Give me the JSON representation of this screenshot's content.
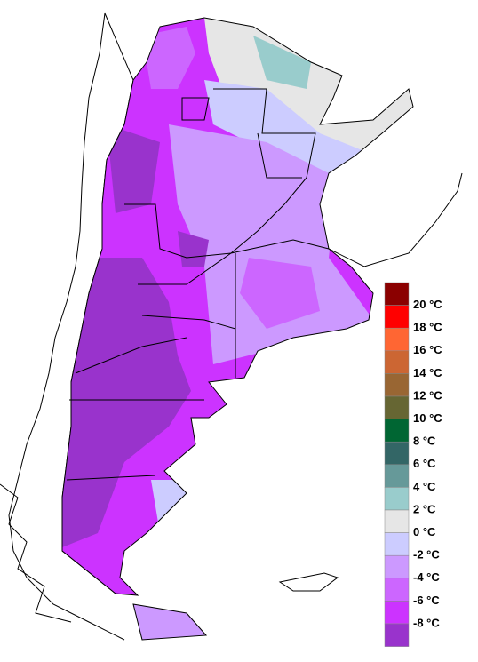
{
  "legend": {
    "swatch_colors": [
      "#8b0000",
      "#ff0000",
      "#ff6633",
      "#cc6633",
      "#996633",
      "#666633",
      "#006633",
      "#336666",
      "#669999",
      "#99cccc",
      "#e6e6e6",
      "#ccccff",
      "#cc99ff",
      "#cc66ff",
      "#cc33ff",
      "#9933cc"
    ],
    "labels": [
      "20 °C",
      "18 °C",
      "16 °C",
      "14 °C",
      "12 °C",
      "10 °C",
      "8 °C",
      "6 °C",
      "4 °C",
      "2 °C",
      "0 °C",
      "-2 °C",
      "-4 °C",
      "-6 °C",
      "-8 °C"
    ]
  }
}
